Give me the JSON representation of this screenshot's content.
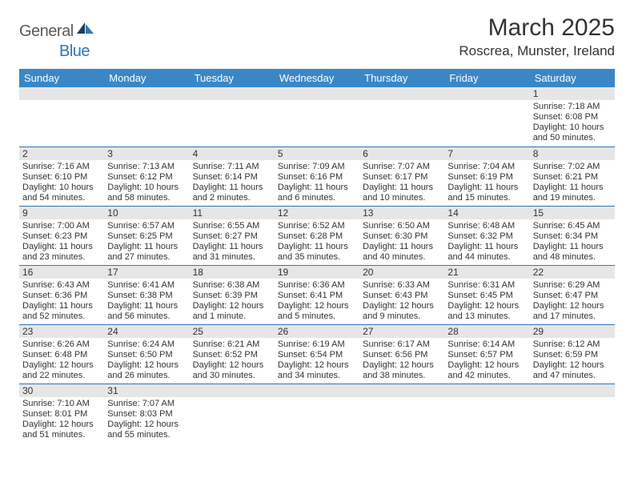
{
  "header": {
    "logo_text_1": "General",
    "logo_text_2": "Blue",
    "month_title": "March 2025",
    "location": "Roscrea, Munster, Ireland"
  },
  "colors": {
    "header_bg": "#3a87c7",
    "border": "#2e75b6",
    "daynum_bg": "#e6e6e6",
    "logo_gray": "#5a5a5a",
    "logo_blue": "#2e75b6"
  },
  "weekdays": [
    "Sunday",
    "Monday",
    "Tuesday",
    "Wednesday",
    "Thursday",
    "Friday",
    "Saturday"
  ],
  "weeks": [
    [
      null,
      null,
      null,
      null,
      null,
      null,
      {
        "n": "1",
        "sunrise": "Sunrise: 7:18 AM",
        "sunset": "Sunset: 6:08 PM",
        "daylight": "Daylight: 10 hours and 50 minutes."
      }
    ],
    [
      {
        "n": "2",
        "sunrise": "Sunrise: 7:16 AM",
        "sunset": "Sunset: 6:10 PM",
        "daylight": "Daylight: 10 hours and 54 minutes."
      },
      {
        "n": "3",
        "sunrise": "Sunrise: 7:13 AM",
        "sunset": "Sunset: 6:12 PM",
        "daylight": "Daylight: 10 hours and 58 minutes."
      },
      {
        "n": "4",
        "sunrise": "Sunrise: 7:11 AM",
        "sunset": "Sunset: 6:14 PM",
        "daylight": "Daylight: 11 hours and 2 minutes."
      },
      {
        "n": "5",
        "sunrise": "Sunrise: 7:09 AM",
        "sunset": "Sunset: 6:16 PM",
        "daylight": "Daylight: 11 hours and 6 minutes."
      },
      {
        "n": "6",
        "sunrise": "Sunrise: 7:07 AM",
        "sunset": "Sunset: 6:17 PM",
        "daylight": "Daylight: 11 hours and 10 minutes."
      },
      {
        "n": "7",
        "sunrise": "Sunrise: 7:04 AM",
        "sunset": "Sunset: 6:19 PM",
        "daylight": "Daylight: 11 hours and 15 minutes."
      },
      {
        "n": "8",
        "sunrise": "Sunrise: 7:02 AM",
        "sunset": "Sunset: 6:21 PM",
        "daylight": "Daylight: 11 hours and 19 minutes."
      }
    ],
    [
      {
        "n": "9",
        "sunrise": "Sunrise: 7:00 AM",
        "sunset": "Sunset: 6:23 PM",
        "daylight": "Daylight: 11 hours and 23 minutes."
      },
      {
        "n": "10",
        "sunrise": "Sunrise: 6:57 AM",
        "sunset": "Sunset: 6:25 PM",
        "daylight": "Daylight: 11 hours and 27 minutes."
      },
      {
        "n": "11",
        "sunrise": "Sunrise: 6:55 AM",
        "sunset": "Sunset: 6:27 PM",
        "daylight": "Daylight: 11 hours and 31 minutes."
      },
      {
        "n": "12",
        "sunrise": "Sunrise: 6:52 AM",
        "sunset": "Sunset: 6:28 PM",
        "daylight": "Daylight: 11 hours and 35 minutes."
      },
      {
        "n": "13",
        "sunrise": "Sunrise: 6:50 AM",
        "sunset": "Sunset: 6:30 PM",
        "daylight": "Daylight: 11 hours and 40 minutes."
      },
      {
        "n": "14",
        "sunrise": "Sunrise: 6:48 AM",
        "sunset": "Sunset: 6:32 PM",
        "daylight": "Daylight: 11 hours and 44 minutes."
      },
      {
        "n": "15",
        "sunrise": "Sunrise: 6:45 AM",
        "sunset": "Sunset: 6:34 PM",
        "daylight": "Daylight: 11 hours and 48 minutes."
      }
    ],
    [
      {
        "n": "16",
        "sunrise": "Sunrise: 6:43 AM",
        "sunset": "Sunset: 6:36 PM",
        "daylight": "Daylight: 11 hours and 52 minutes."
      },
      {
        "n": "17",
        "sunrise": "Sunrise: 6:41 AM",
        "sunset": "Sunset: 6:38 PM",
        "daylight": "Daylight: 11 hours and 56 minutes."
      },
      {
        "n": "18",
        "sunrise": "Sunrise: 6:38 AM",
        "sunset": "Sunset: 6:39 PM",
        "daylight": "Daylight: 12 hours and 1 minute."
      },
      {
        "n": "19",
        "sunrise": "Sunrise: 6:36 AM",
        "sunset": "Sunset: 6:41 PM",
        "daylight": "Daylight: 12 hours and 5 minutes."
      },
      {
        "n": "20",
        "sunrise": "Sunrise: 6:33 AM",
        "sunset": "Sunset: 6:43 PM",
        "daylight": "Daylight: 12 hours and 9 minutes."
      },
      {
        "n": "21",
        "sunrise": "Sunrise: 6:31 AM",
        "sunset": "Sunset: 6:45 PM",
        "daylight": "Daylight: 12 hours and 13 minutes."
      },
      {
        "n": "22",
        "sunrise": "Sunrise: 6:29 AM",
        "sunset": "Sunset: 6:47 PM",
        "daylight": "Daylight: 12 hours and 17 minutes."
      }
    ],
    [
      {
        "n": "23",
        "sunrise": "Sunrise: 6:26 AM",
        "sunset": "Sunset: 6:48 PM",
        "daylight": "Daylight: 12 hours and 22 minutes."
      },
      {
        "n": "24",
        "sunrise": "Sunrise: 6:24 AM",
        "sunset": "Sunset: 6:50 PM",
        "daylight": "Daylight: 12 hours and 26 minutes."
      },
      {
        "n": "25",
        "sunrise": "Sunrise: 6:21 AM",
        "sunset": "Sunset: 6:52 PM",
        "daylight": "Daylight: 12 hours and 30 minutes."
      },
      {
        "n": "26",
        "sunrise": "Sunrise: 6:19 AM",
        "sunset": "Sunset: 6:54 PM",
        "daylight": "Daylight: 12 hours and 34 minutes."
      },
      {
        "n": "27",
        "sunrise": "Sunrise: 6:17 AM",
        "sunset": "Sunset: 6:56 PM",
        "daylight": "Daylight: 12 hours and 38 minutes."
      },
      {
        "n": "28",
        "sunrise": "Sunrise: 6:14 AM",
        "sunset": "Sunset: 6:57 PM",
        "daylight": "Daylight: 12 hours and 42 minutes."
      },
      {
        "n": "29",
        "sunrise": "Sunrise: 6:12 AM",
        "sunset": "Sunset: 6:59 PM",
        "daylight": "Daylight: 12 hours and 47 minutes."
      }
    ],
    [
      {
        "n": "30",
        "sunrise": "Sunrise: 7:10 AM",
        "sunset": "Sunset: 8:01 PM",
        "daylight": "Daylight: 12 hours and 51 minutes."
      },
      {
        "n": "31",
        "sunrise": "Sunrise: 7:07 AM",
        "sunset": "Sunset: 8:03 PM",
        "daylight": "Daylight: 12 hours and 55 minutes."
      },
      null,
      null,
      null,
      null,
      null
    ]
  ]
}
